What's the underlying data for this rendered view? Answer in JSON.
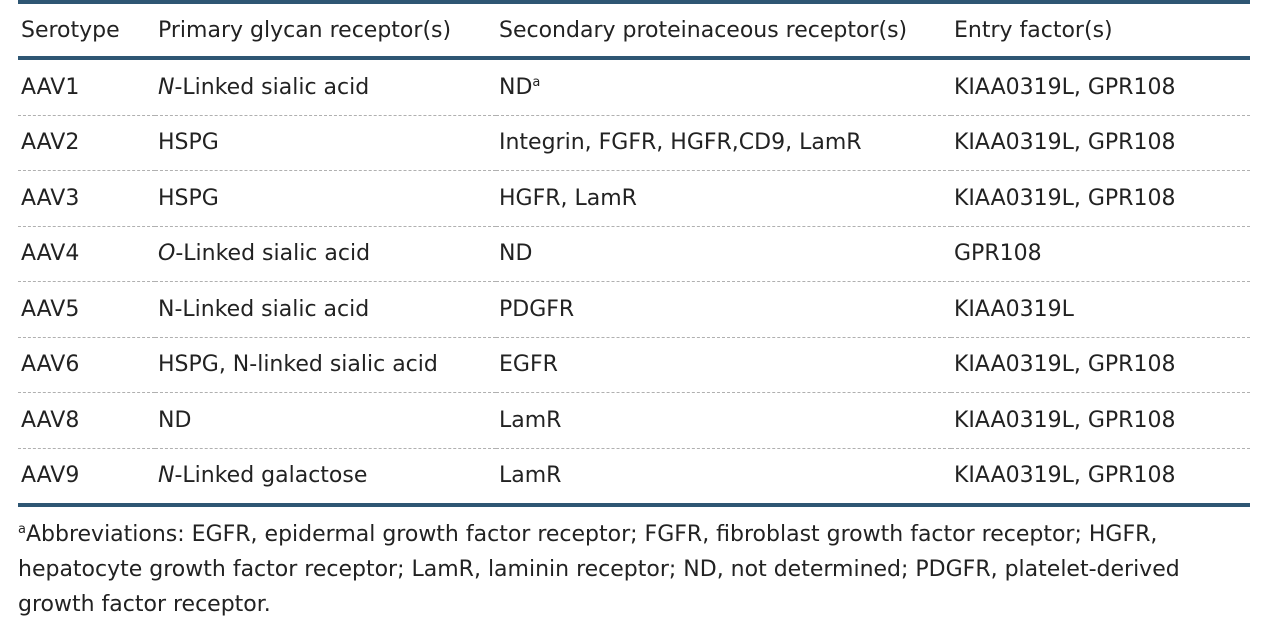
{
  "table": {
    "headers": [
      "Serotype",
      "Primary glycan receptor(s)",
      "Secondary proteinaceous receptor(s)",
      "Entry factor(s)"
    ],
    "rows": [
      {
        "serotype": "AAV1",
        "primary_italic": "N",
        "primary": "-Linked sialic acid",
        "secondary": "ND",
        "secondary_sup": "a",
        "entry": "KIAA0319L, GPR108"
      },
      {
        "serotype": "AAV2",
        "primary_italic": "",
        "primary": "HSPG",
        "secondary": "Integrin, FGFR, HGFR,CD9, LamR",
        "secondary_sup": "",
        "entry": "KIAA0319L, GPR108"
      },
      {
        "serotype": "AAV3",
        "primary_italic": "",
        "primary": "HSPG",
        "secondary": "HGFR, LamR",
        "secondary_sup": "",
        "entry": "KIAA0319L, GPR108"
      },
      {
        "serotype": "AAV4",
        "primary_italic": "O",
        "primary": "-Linked sialic acid",
        "secondary": "ND",
        "secondary_sup": "",
        "entry": "GPR108"
      },
      {
        "serotype": "AAV5",
        "primary_italic": "",
        "primary": "N-Linked sialic acid",
        "secondary": "PDGFR",
        "secondary_sup": "",
        "entry": "KIAA0319L"
      },
      {
        "serotype": "AAV6",
        "primary_italic": "",
        "primary": "HSPG, N-linked sialic acid",
        "secondary": "EGFR",
        "secondary_sup": "",
        "entry": "KIAA0319L, GPR108"
      },
      {
        "serotype": "AAV8",
        "primary_italic": "",
        "primary": "ND",
        "secondary": "LamR",
        "secondary_sup": "",
        "entry": "KIAA0319L, GPR108"
      },
      {
        "serotype": "AAV9",
        "primary_italic": "N",
        "primary": "-Linked galactose",
        "secondary": "LamR",
        "secondary_sup": "",
        "entry": "KIAA0319L, GPR108"
      }
    ],
    "rule_color": "#2e5673"
  },
  "footnote": {
    "marker": "a",
    "text": "Abbreviations: EGFR, epidermal growth factor receptor; FGFR, fibroblast growth factor receptor; HGFR, hepatocyte growth factor receptor; LamR, laminin receptor; ND, not determined; PDGFR, platelet-derived growth factor receptor."
  }
}
